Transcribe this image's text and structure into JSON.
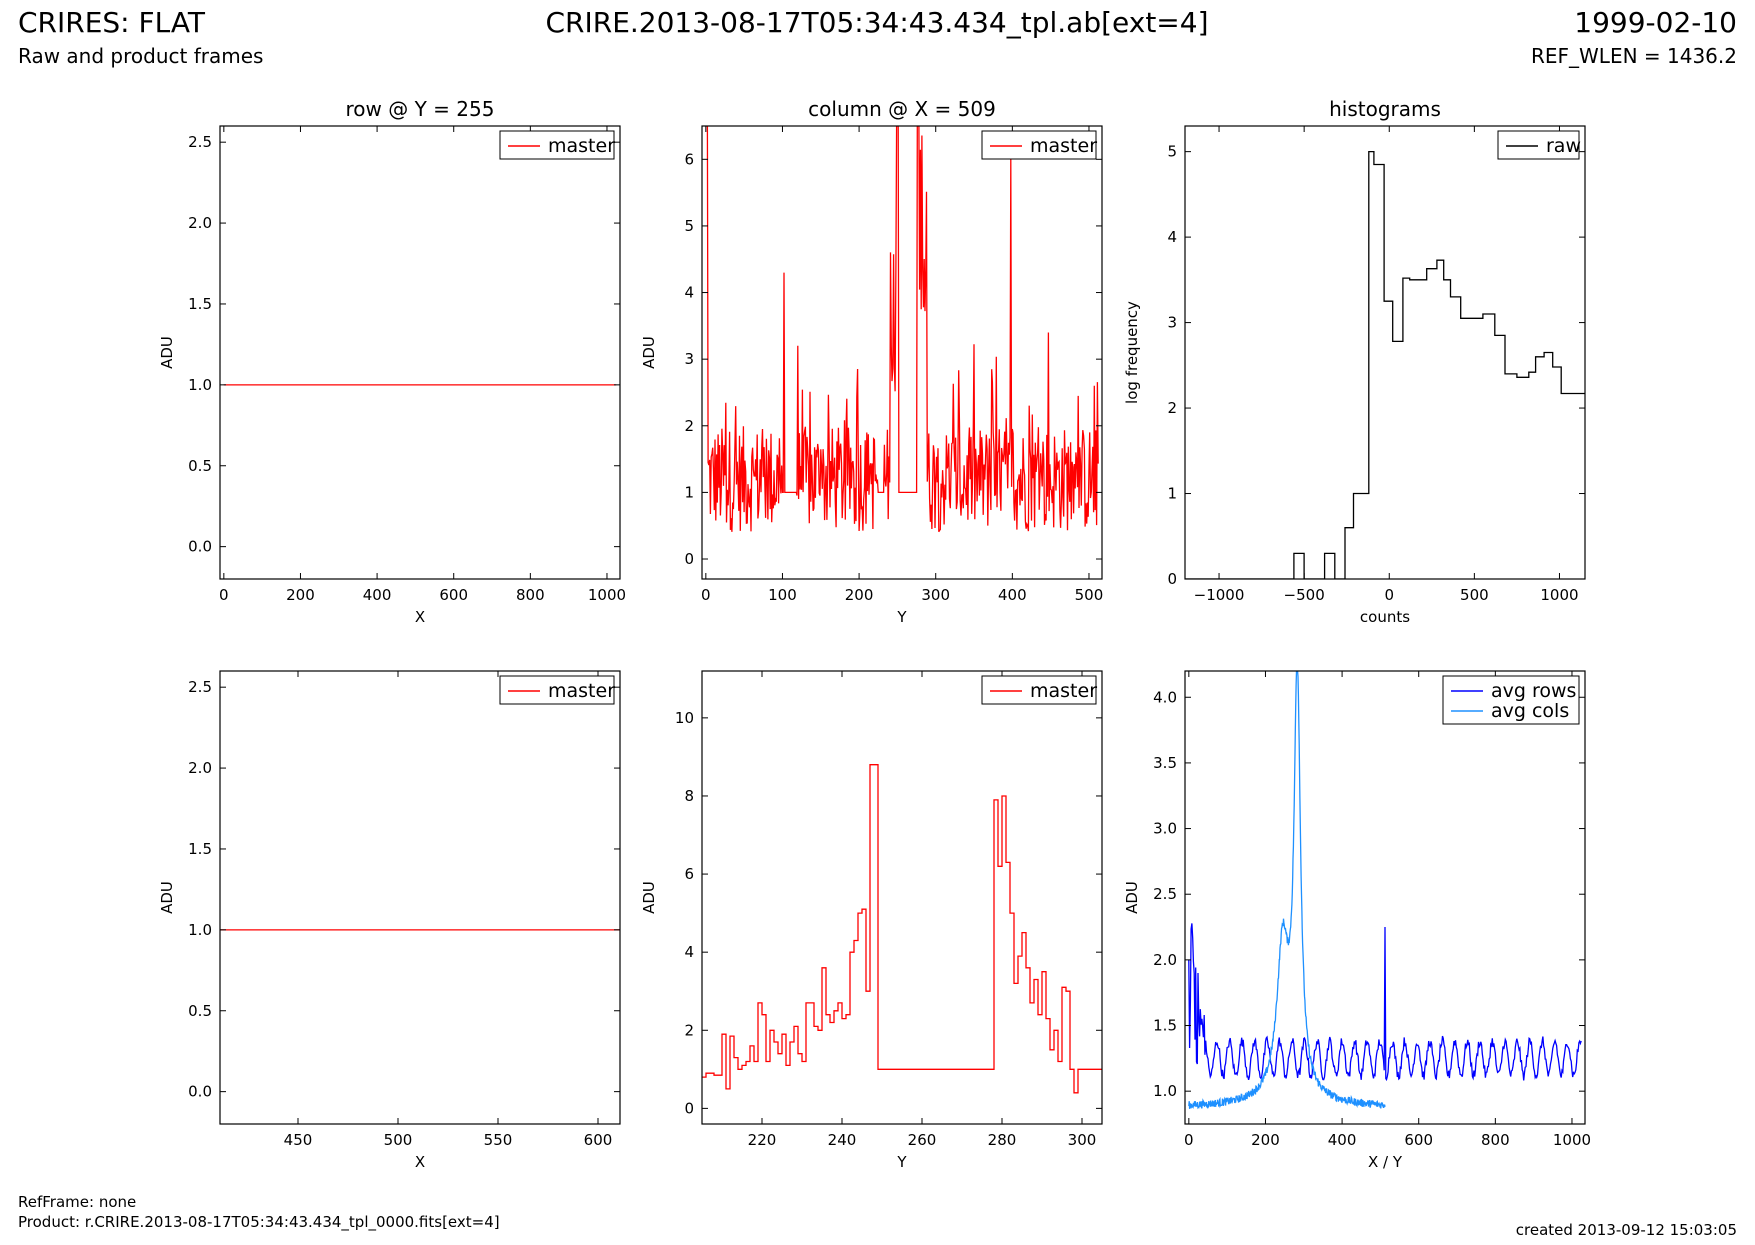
{
  "header": {
    "title_left": "CRIRES: FLAT",
    "subtitle_left": "Raw and product frames",
    "title_center": "CRIRE.2013-08-17T05:34:43.434_tpl.ab[ext=4]",
    "title_right": "1999-02-10",
    "subtitle_right": "REF_WLEN = 1436.2"
  },
  "footer": {
    "ref_frame": "RefFrame: none",
    "product": "Product: r.CRIRE.2013-08-17T05:34:43.434_tpl_0000.fits[ext=4]",
    "created": "created 2013-09-12 15:03:05"
  },
  "colors": {
    "master": "#ff0000",
    "raw": "#000000",
    "avg_rows": "#0000ff",
    "avg_cols": "#1e90ff"
  },
  "chart_data": [
    {
      "id": "row-full",
      "type": "line",
      "title": "row @ Y = 255",
      "xlabel": "X",
      "ylabel": "ADU",
      "xlim": [
        -10,
        1034
      ],
      "ylim": [
        -0.2,
        2.6
      ],
      "xticks": [
        0,
        200,
        400,
        600,
        800,
        1000
      ],
      "yticks": [
        0.0,
        0.5,
        1.0,
        1.5,
        2.0,
        2.5
      ],
      "ytick_labels": [
        "0.0",
        "0.5",
        "1.0",
        "1.5",
        "2.0",
        "2.5"
      ],
      "legend": "top-right",
      "series": [
        {
          "name": "master",
          "color": "#ff0000",
          "x": [
            0,
            1024
          ],
          "y": [
            1.0,
            1.0
          ]
        }
      ]
    },
    {
      "id": "col-full",
      "type": "line",
      "title": "column @ X = 509",
      "xlabel": "Y",
      "ylabel": "ADU",
      "xlim": [
        -5,
        517
      ],
      "ylim": [
        -0.3,
        6.5
      ],
      "xticks": [
        0,
        100,
        200,
        300,
        400,
        500
      ],
      "yticks": [
        0,
        1,
        2,
        3,
        4,
        5,
        6
      ],
      "legend": "top-right",
      "series": [
        {
          "name": "master",
          "color": "#ff0000",
          "generated": "noisy_column"
        }
      ]
    },
    {
      "id": "hist",
      "type": "line",
      "title": "histograms",
      "xlabel": "counts",
      "ylabel": "log frequency",
      "xlim": [
        -1200,
        1150
      ],
      "ylim": [
        0,
        5.3
      ],
      "xticks": [
        -1000,
        -500,
        0,
        500,
        1000
      ],
      "xtick_labels": [
        "−1000",
        "−500",
        "0",
        "500",
        "1000"
      ],
      "yticks": [
        0,
        1,
        2,
        3,
        4,
        5
      ],
      "legend": "top-right",
      "series": [
        {
          "name": "raw",
          "color": "#000000",
          "step": true,
          "x": [
            -1200,
            -560,
            -560,
            -500,
            -500,
            -440,
            -440,
            -380,
            -380,
            -320,
            -320,
            -260,
            -260,
            -210,
            -210,
            -160,
            -160,
            -120,
            -120,
            -90,
            -90,
            -30,
            -30,
            20,
            20,
            80,
            80,
            120,
            120,
            220,
            220,
            280,
            280,
            320,
            320,
            360,
            360,
            420,
            420,
            480,
            480,
            550,
            550,
            620,
            620,
            680,
            680,
            750,
            750,
            820,
            820,
            860,
            860,
            910,
            910,
            960,
            960,
            1010,
            1010,
            1060,
            1060,
            1120,
            1120,
            1150
          ],
          "y": [
            0,
            0,
            0.3,
            0.3,
            0,
            0,
            0,
            0,
            0.3,
            0.3,
            0,
            0,
            0.6,
            0.6,
            1.0,
            1.0,
            1.0,
            1.0,
            5.0,
            5.0,
            4.85,
            4.85,
            3.25,
            3.25,
            2.78,
            2.78,
            3.52,
            3.52,
            3.5,
            3.5,
            3.63,
            3.63,
            3.73,
            3.73,
            3.5,
            3.5,
            3.3,
            3.3,
            3.05,
            3.05,
            3.05,
            3.05,
            3.1,
            3.1,
            2.85,
            2.85,
            2.4,
            2.4,
            2.36,
            2.36,
            2.42,
            2.42,
            2.6,
            2.6,
            2.65,
            2.65,
            2.48,
            2.48,
            2.17,
            2.17,
            2.17,
            2.17,
            2.17,
            2.17
          ]
        }
      ]
    },
    {
      "id": "row-zoom",
      "type": "line",
      "title": "",
      "xlabel": "X",
      "ylabel": "ADU",
      "xlim": [
        411,
        611
      ],
      "ylim": [
        -0.2,
        2.6
      ],
      "xticks": [
        450,
        500,
        550,
        600
      ],
      "yticks": [
        0.0,
        0.5,
        1.0,
        1.5,
        2.0,
        2.5
      ],
      "ytick_labels": [
        "0.0",
        "0.5",
        "1.0",
        "1.5",
        "2.0",
        "2.5"
      ],
      "legend": "top-right",
      "series": [
        {
          "name": "master",
          "color": "#ff0000",
          "x": [
            411,
            611
          ],
          "y": [
            1.0,
            1.0
          ]
        }
      ]
    },
    {
      "id": "col-zoom",
      "type": "line",
      "title": "",
      "xlabel": "Y",
      "ylabel": "ADU",
      "xlim": [
        205,
        305
      ],
      "ylim": [
        -0.4,
        11.2
      ],
      "xticks": [
        220,
        240,
        260,
        280,
        300
      ],
      "yticks": [
        0,
        2,
        4,
        6,
        8,
        10
      ],
      "legend": "top-right",
      "series": [
        {
          "name": "master",
          "color": "#ff0000",
          "step": true,
          "x": [
            205,
            206,
            207,
            208,
            209,
            210,
            211,
            212,
            213,
            214,
            215,
            216,
            217,
            218,
            219,
            220,
            221,
            222,
            223,
            224,
            225,
            226,
            227,
            228,
            229,
            230,
            231,
            232,
            233,
            234,
            235,
            236,
            237,
            238,
            239,
            240,
            241,
            242,
            243,
            244,
            245,
            246,
            247,
            248,
            249,
            250,
            278,
            279,
            280,
            281,
            282,
            283,
            284,
            285,
            286,
            287,
            288,
            289,
            290,
            291,
            292,
            293,
            294,
            295,
            296,
            297,
            298,
            299,
            300,
            301,
            302,
            303,
            305
          ],
          "y": [
            0.8,
            0.9,
            0.9,
            0.85,
            0.85,
            1.9,
            0.5,
            1.85,
            1.3,
            1.0,
            1.1,
            1.2,
            1.6,
            1.2,
            2.7,
            2.4,
            1.2,
            2.0,
            1.7,
            1.4,
            1.9,
            1.1,
            1.7,
            2.1,
            1.4,
            1.2,
            2.7,
            2.7,
            2.1,
            2.0,
            3.6,
            2.4,
            2.2,
            2.5,
            2.7,
            2.3,
            2.4,
            4.0,
            4.3,
            5.0,
            5.1,
            3.0,
            8.8,
            8.8,
            1.0,
            1.0,
            7.9,
            6.2,
            8.0,
            6.3,
            5.0,
            3.2,
            3.9,
            4.5,
            3.6,
            2.7,
            3.3,
            2.4,
            3.5,
            2.3,
            1.5,
            2.0,
            1.2,
            3.1,
            3.0,
            1.0,
            0.4,
            1.0,
            1.0,
            1.0,
            1.0,
            1.0,
            1.0
          ]
        }
      ]
    },
    {
      "id": "avg",
      "type": "line",
      "title": "",
      "xlabel": "X / Y",
      "ylabel": "ADU",
      "xlim": [
        -10,
        1034
      ],
      "ylim": [
        0.75,
        4.2
      ],
      "xticks": [
        0,
        200,
        400,
        600,
        800,
        1000
      ],
      "yticks": [
        1.0,
        1.5,
        2.0,
        2.5,
        3.0,
        3.5,
        4.0
      ],
      "ytick_labels": [
        "1.0",
        "1.5",
        "2.0",
        "2.5",
        "3.0",
        "3.5",
        "4.0"
      ],
      "legend": "top-right",
      "series": [
        {
          "name": "avg rows",
          "color": "#0000ff",
          "generated": "avg_rows"
        },
        {
          "name": "avg cols",
          "color": "#1e90ff",
          "generated": "avg_cols"
        }
      ]
    }
  ]
}
